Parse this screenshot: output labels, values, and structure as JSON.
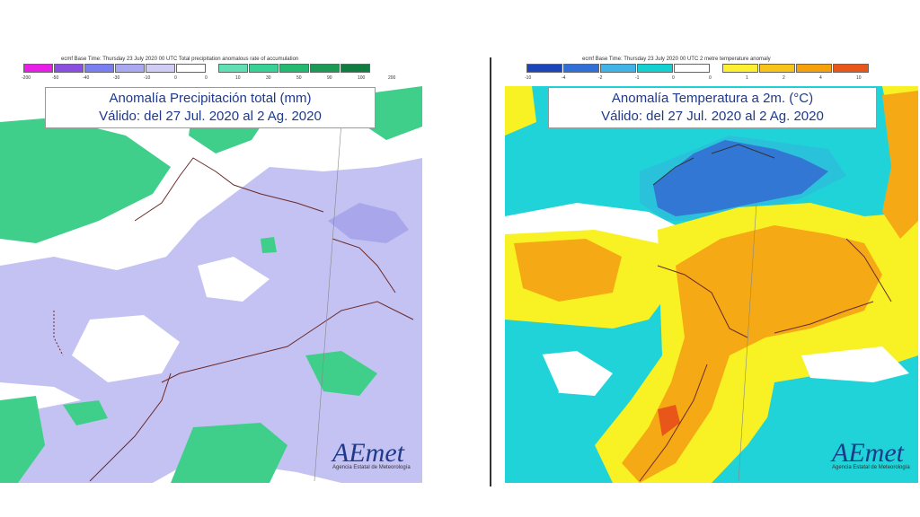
{
  "left_panel": {
    "caption": "ecmf Base Time: Thursday 23 July 2020 00 UTC Total precipitation anomalous rate of accumulation",
    "title_line1": "Anomalía Precipitación total (mm)",
    "title_line2": "Válido: del 27 Jul. 2020 al 2 Ag. 2020",
    "legend_ticks": [
      "-200",
      "-50",
      "-40",
      "-30",
      "-10",
      "0",
      "0",
      "10",
      "30",
      "50",
      "90",
      "100",
      "200"
    ],
    "legend_colors": [
      "#e81ee8",
      "#8a4fe0",
      "#7a7ef0",
      "#a9a8f0",
      "#cfcdf5",
      "#ffffff",
      "#60dfb5",
      "#38d195",
      "#22b970",
      "#1a9a55",
      "#0f7d3f"
    ],
    "colors": {
      "positive": "#3fcf8a",
      "negative": "#c4c2f2",
      "neutral": "#ffffff"
    }
  },
  "right_panel": {
    "caption": "ecmf Base Time: Thursday 23 July 2020 00 UTC 2 metre temperature anomaly",
    "title_line1": "Anomalía Temperatura a 2m. (°C)",
    "title_line2": "Válido: del 27 Jul. 2020 al 2 Ag. 2020",
    "legend_ticks": [
      "-10",
      "-4",
      "-2",
      "-1",
      "0",
      "0",
      "1",
      "2",
      "4",
      "10"
    ],
    "legend_colors": [
      "#1b45b8",
      "#2f6fd6",
      "#40b4e6",
      "#14d1d1",
      "#ffffff",
      "#fbf130",
      "#f8c41a",
      "#f4a10c",
      "#e9561a"
    ],
    "colors": {
      "cold": "#1fd3d9",
      "very_cold": "#2a60cc",
      "warm": "#f8f224",
      "hot": "#f5a914"
    }
  },
  "logo": {
    "text": "AEmet",
    "subtitle": "Agencia Estatal de Meteorología"
  }
}
